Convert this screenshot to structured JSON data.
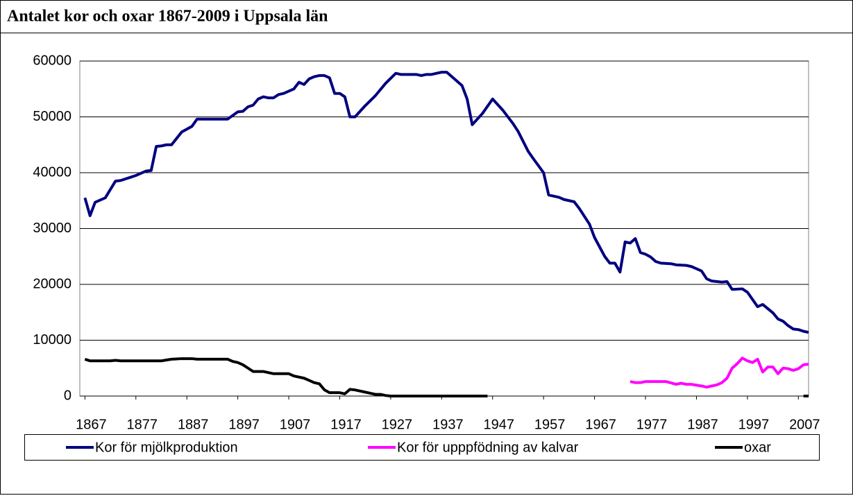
{
  "chart_data": {
    "type": "line",
    "title": "Antalet kor och oxar 1867-2009 i Uppsala län",
    "xlim": [
      1866,
      2009
    ],
    "xticks": [
      1867,
      1877,
      1887,
      1897,
      1907,
      1917,
      1927,
      1937,
      1947,
      1957,
      1967,
      1977,
      1987,
      1997,
      2007
    ],
    "ylim": [
      0,
      60000
    ],
    "yticks": [
      0,
      10000,
      20000,
      30000,
      40000,
      50000,
      60000
    ],
    "grid": true,
    "legend": "bottom",
    "series": [
      {
        "name": "Kor för mjölkproduktion",
        "color": "#000080",
        "x": [
          1867,
          1868,
          1869,
          1871,
          1873,
          1874,
          1876,
          1877,
          1879,
          1880,
          1881,
          1882,
          1883,
          1884,
          1886,
          1888,
          1889,
          1895,
          1897,
          1898,
          1899,
          1900,
          1901,
          1902,
          1903,
          1904,
          1905,
          1906,
          1907,
          1908,
          1909,
          1910,
          1911,
          1912,
          1913,
          1914,
          1915,
          1916,
          1917,
          1918,
          1919,
          1920,
          1922,
          1924,
          1926,
          1928,
          1929,
          1932,
          1933,
          1934,
          1935,
          1936,
          1937,
          1938,
          1939,
          1941,
          1942,
          1943,
          1945,
          1947,
          1949,
          1951,
          1952,
          1954,
          1955,
          1957,
          1958,
          1960,
          1961,
          1963,
          1964,
          1966,
          1967,
          1969,
          1970,
          1971,
          1972,
          1973,
          1974,
          1975,
          1976,
          1977,
          1978,
          1979,
          1980,
          1982,
          1983,
          1985,
          1986,
          1987,
          1988,
          1989,
          1990,
          1992,
          1993,
          1994,
          1996,
          1997,
          1999,
          2000,
          2002,
          2003,
          2004,
          2005,
          2006,
          2007,
          2008,
          2009
        ],
        "values": [
          35500,
          32300,
          34700,
          35500,
          38500,
          38600,
          39200,
          39500,
          40300,
          40400,
          44700,
          44800,
          45000,
          45000,
          47300,
          48300,
          49600,
          49600,
          50900,
          51000,
          51800,
          52100,
          53200,
          53600,
          53400,
          53400,
          54000,
          54200,
          54600,
          55000,
          56200,
          55800,
          56800,
          57200,
          57400,
          57400,
          57000,
          54200,
          54200,
          53600,
          50000,
          50000,
          52000,
          53800,
          56000,
          57800,
          57600,
          57600,
          57400,
          57600,
          57600,
          57800,
          58000,
          58000,
          57200,
          55600,
          53200,
          48600,
          50600,
          53200,
          51200,
          48800,
          47400,
          43800,
          42500,
          40000,
          36000,
          35600,
          35200,
          34800,
          33600,
          30800,
          28400,
          25000,
          23800,
          23800,
          22200,
          27600,
          27400,
          28200,
          25700,
          25400,
          24900,
          24100,
          23800,
          23700,
          23500,
          23400,
          23200,
          22800,
          22400,
          21000,
          20600,
          20400,
          20500,
          19100,
          19200,
          18600,
          16000,
          16400,
          14900,
          13800,
          13400,
          12600,
          12000,
          11900,
          11600,
          11400
        ]
      },
      {
        "name": "Kor för upppfödning av kalvar",
        "color": "#ff00ff",
        "x": [
          1974,
          1975,
          1976,
          1977,
          1979,
          1981,
          1983,
          1984,
          1985,
          1986,
          1988,
          1989,
          1990,
          1991,
          1992,
          1993,
          1994,
          1995,
          1996,
          1997,
          1998,
          1999,
          2000,
          2001,
          2002,
          2003,
          2004,
          2005,
          2006,
          2007,
          2008,
          2009
        ],
        "values": [
          2600,
          2400,
          2400,
          2600,
          2600,
          2600,
          2100,
          2300,
          2100,
          2100,
          1800,
          1600,
          1800,
          2000,
          2400,
          3200,
          5000,
          5800,
          6800,
          6300,
          6000,
          6600,
          4300,
          5200,
          5200,
          4000,
          5000,
          4900,
          4600,
          4900,
          5600,
          5700
        ]
      },
      {
        "name": "oxar",
        "color": "#000000",
        "x": [
          1867,
          1868,
          1872,
          1873,
          1874,
          1882,
          1884,
          1886,
          1888,
          1889,
          1895,
          1896,
          1897,
          1898,
          1899,
          1900,
          1902,
          1903,
          1904,
          1907,
          1908,
          1910,
          1911,
          1912,
          1913,
          1914,
          1915,
          1917,
          1918,
          1919,
          1920,
          1922,
          1924,
          1925,
          1926,
          1927,
          1946,
          1947,
          2008,
          2009
        ],
        "values": [
          6600,
          6300,
          6300,
          6400,
          6300,
          6300,
          6600,
          6700,
          6700,
          6600,
          6600,
          6200,
          6000,
          5600,
          5000,
          4400,
          4400,
          4200,
          4000,
          4000,
          3600,
          3200,
          2800,
          2400,
          2200,
          1100,
          600,
          600,
          400,
          1200,
          1100,
          700,
          300,
          300,
          100,
          0,
          0,
          null,
          0,
          0
        ]
      }
    ]
  }
}
